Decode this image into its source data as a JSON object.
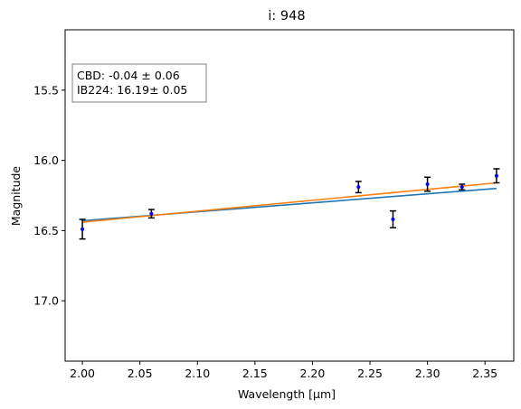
{
  "chart_data": {
    "type": "scatter",
    "title": "i: 948",
    "xlabel": "Wavelength [µm]",
    "ylabel": "Magnitude",
    "xlim": [
      1.985,
      2.375
    ],
    "ylim": [
      17.43,
      15.07
    ],
    "y_inverted": true,
    "grid": false,
    "x_ticks": [
      "2.00",
      "2.05",
      "2.10",
      "2.15",
      "2.20",
      "2.25",
      "2.30",
      "2.35"
    ],
    "x_tick_values": [
      2.0,
      2.05,
      2.1,
      2.15,
      2.2,
      2.25,
      2.3,
      2.35
    ],
    "y_ticks": [
      "15.5",
      "16.0",
      "16.5",
      "17.0"
    ],
    "y_tick_values": [
      15.5,
      16.0,
      16.5,
      17.0
    ],
    "annotation": {
      "line1": "CBD: -0.04 ± 0.06",
      "line2": "IB224: 16.19± 0.05"
    },
    "points": {
      "color": "#0000ff",
      "errorbar_color": "#000000",
      "x": [
        2.0,
        2.06,
        2.24,
        2.27,
        2.3,
        2.33,
        2.36
      ],
      "y": [
        16.49,
        16.38,
        16.19,
        16.42,
        16.17,
        16.19,
        16.11
      ],
      "yerr": [
        0.07,
        0.03,
        0.04,
        0.06,
        0.05,
        0.02,
        0.05
      ]
    },
    "series": [
      {
        "color": "#1f77b4",
        "x": [
          2.0,
          2.36
        ],
        "y": [
          16.43,
          16.2
        ]
      },
      {
        "color": "#ff7f0e",
        "x": [
          2.0,
          2.36
        ],
        "y": [
          16.44,
          16.16
        ]
      }
    ]
  }
}
